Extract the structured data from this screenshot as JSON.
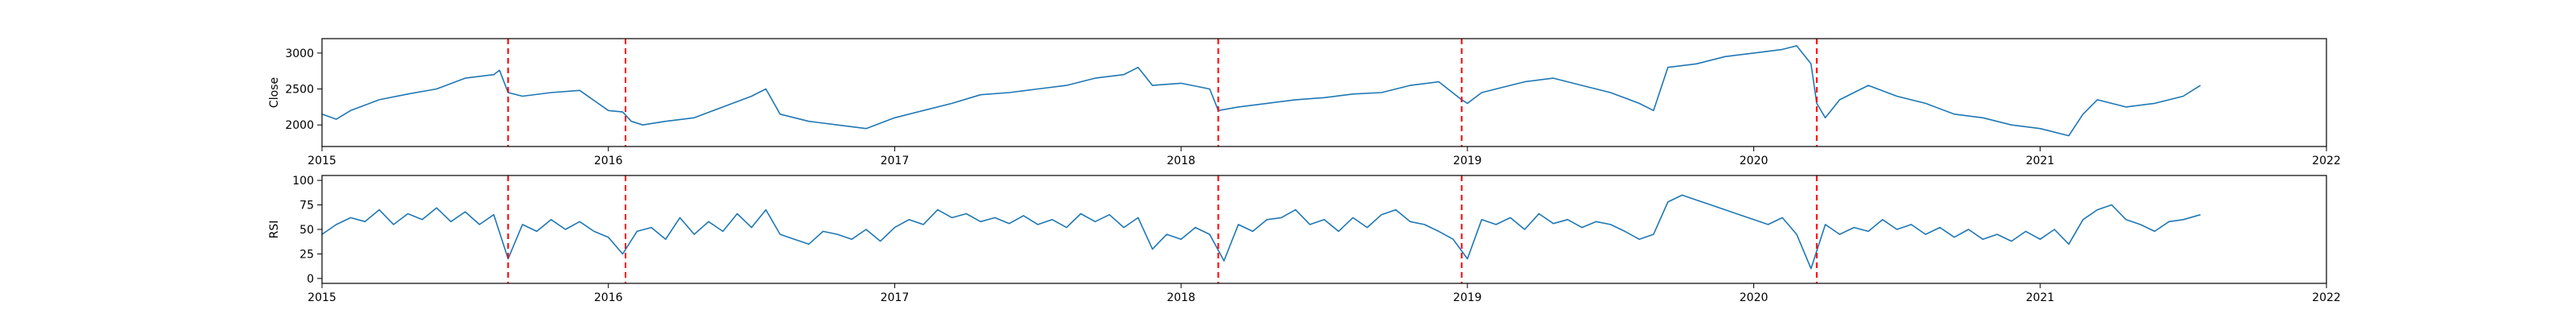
{
  "chart_data": [
    {
      "type": "line",
      "title": "",
      "xlabel": "",
      "ylabel": "Close",
      "xlim": [
        2015.0,
        2022.0
      ],
      "ylim": [
        1700,
        3200
      ],
      "grid": false,
      "x_ticks": [
        2015,
        2016,
        2017,
        2018,
        2019,
        2020,
        2021,
        2022
      ],
      "x_tick_labels": [
        "2015",
        "2016",
        "2017",
        "2018",
        "2019",
        "2020",
        "2021",
        "2022"
      ],
      "y_ticks": [
        2000,
        2500,
        3000
      ],
      "y_tick_labels": [
        "2000",
        "2500",
        "3000"
      ],
      "series": [
        {
          "color": "#1f77b4",
          "x": [
            2015.0,
            2015.05,
            2015.1,
            2015.2,
            2015.3,
            2015.4,
            2015.5,
            2015.6,
            2015.62,
            2015.65,
            2015.7,
            2015.8,
            2015.9,
            2016.0,
            2016.05,
            2016.08,
            2016.12,
            2016.2,
            2016.3,
            2016.4,
            2016.5,
            2016.55,
            2016.6,
            2016.7,
            2016.8,
            2016.9,
            2017.0,
            2017.1,
            2017.2,
            2017.3,
            2017.4,
            2017.5,
            2017.6,
            2017.7,
            2017.8,
            2017.85,
            2017.9,
            2018.0,
            2018.1,
            2018.13,
            2018.2,
            2018.3,
            2018.4,
            2018.5,
            2018.6,
            2018.7,
            2018.8,
            2018.9,
            2018.98,
            2019.0,
            2019.05,
            2019.1,
            2019.2,
            2019.3,
            2019.4,
            2019.5,
            2019.6,
            2019.65,
            2019.7,
            2019.8,
            2019.9,
            2020.0,
            2020.1,
            2020.15,
            2020.2,
            2020.22,
            2020.25,
            2020.3,
            2020.35,
            2020.4,
            2020.5,
            2020.6,
            2020.7,
            2020.8,
            2020.9,
            2021.0,
            2021.1,
            2021.15,
            2021.2,
            2021.3,
            2021.4,
            2021.5,
            2021.56
          ],
          "values": [
            2150,
            2080,
            2200,
            2350,
            2430,
            2500,
            2650,
            2700,
            2760,
            2450,
            2400,
            2450,
            2480,
            2200,
            2180,
            2050,
            2000,
            2050,
            2100,
            2250,
            2400,
            2500,
            2150,
            2050,
            2000,
            1950,
            2100,
            2200,
            2300,
            2420,
            2450,
            2500,
            2550,
            2650,
            2700,
            2800,
            2550,
            2580,
            2500,
            2200,
            2250,
            2300,
            2350,
            2380,
            2430,
            2450,
            2550,
            2600,
            2350,
            2300,
            2450,
            2500,
            2600,
            2650,
            2550,
            2450,
            2300,
            2200,
            2800,
            2850,
            2950,
            3000,
            3050,
            3100,
            2850,
            2300,
            2100,
            2350,
            2450,
            2550,
            2400,
            2300,
            2150,
            2100,
            2000,
            1950,
            1850,
            2150,
            2350,
            2250,
            2300,
            2400,
            2550
          ]
        }
      ],
      "vlines": {
        "color": "#ff0000",
        "style": "dashed",
        "x": [
          2015.65,
          2016.06,
          2018.13,
          2018.98,
          2020.22
        ]
      }
    },
    {
      "type": "line",
      "title": "",
      "xlabel": "",
      "ylabel": "RSI",
      "xlim": [
        2015.0,
        2022.0
      ],
      "ylim": [
        -5,
        105
      ],
      "grid": false,
      "x_ticks": [
        2015,
        2016,
        2017,
        2018,
        2019,
        2020,
        2021,
        2022
      ],
      "x_tick_labels": [
        "2015",
        "2016",
        "2017",
        "2018",
        "2019",
        "2020",
        "2021",
        "2022"
      ],
      "y_ticks": [
        0,
        25,
        50,
        75,
        100
      ],
      "y_tick_labels": [
        "0",
        "25",
        "50",
        "75",
        "100"
      ],
      "series": [
        {
          "color": "#1f77b4",
          "x": [
            2015.0,
            2015.05,
            2015.1,
            2015.15,
            2015.2,
            2015.25,
            2015.3,
            2015.35,
            2015.4,
            2015.45,
            2015.5,
            2015.55,
            2015.6,
            2015.65,
            2015.7,
            2015.75,
            2015.8,
            2015.85,
            2015.9,
            2015.95,
            2016.0,
            2016.05,
            2016.1,
            2016.15,
            2016.2,
            2016.25,
            2016.3,
            2016.35,
            2016.4,
            2016.45,
            2016.5,
            2016.55,
            2016.6,
            2016.65,
            2016.7,
            2016.75,
            2016.8,
            2016.85,
            2016.9,
            2016.95,
            2017.0,
            2017.05,
            2017.1,
            2017.15,
            2017.2,
            2017.25,
            2017.3,
            2017.35,
            2017.4,
            2017.45,
            2017.5,
            2017.55,
            2017.6,
            2017.65,
            2017.7,
            2017.75,
            2017.8,
            2017.85,
            2017.9,
            2017.95,
            2018.0,
            2018.05,
            2018.1,
            2018.15,
            2018.2,
            2018.25,
            2018.3,
            2018.35,
            2018.4,
            2018.45,
            2018.5,
            2018.55,
            2018.6,
            2018.65,
            2018.7,
            2018.75,
            2018.8,
            2018.85,
            2018.9,
            2018.95,
            2019.0,
            2019.05,
            2019.1,
            2019.15,
            2019.2,
            2019.25,
            2019.3,
            2019.35,
            2019.4,
            2019.45,
            2019.5,
            2019.55,
            2019.6,
            2019.65,
            2019.7,
            2019.75,
            2019.8,
            2019.85,
            2019.9,
            2019.95,
            2020.0,
            2020.05,
            2020.1,
            2020.15,
            2020.2,
            2020.25,
            2020.3,
            2020.35,
            2020.4,
            2020.45,
            2020.5,
            2020.55,
            2020.6,
            2020.65,
            2020.7,
            2020.75,
            2020.8,
            2020.85,
            2020.9,
            2020.95,
            2021.0,
            2021.05,
            2021.1,
            2021.15,
            2021.2,
            2021.25,
            2021.3,
            2021.35,
            2021.4,
            2021.45,
            2021.5,
            2021.56
          ],
          "values": [
            45,
            55,
            62,
            58,
            70,
            55,
            66,
            60,
            72,
            58,
            68,
            55,
            65,
            20,
            55,
            48,
            60,
            50,
            58,
            48,
            42,
            25,
            48,
            52,
            40,
            62,
            45,
            58,
            48,
            66,
            52,
            70,
            45,
            40,
            35,
            48,
            45,
            40,
            50,
            38,
            52,
            60,
            55,
            70,
            62,
            66,
            58,
            62,
            56,
            64,
            55,
            60,
            52,
            66,
            58,
            65,
            52,
            62,
            30,
            45,
            40,
            52,
            45,
            18,
            55,
            48,
            60,
            62,
            70,
            55,
            60,
            48,
            62,
            52,
            65,
            70,
            58,
            55,
            48,
            40,
            20,
            60,
            55,
            62,
            50,
            66,
            56,
            60,
            52,
            58,
            55,
            48,
            40,
            45,
            78,
            85,
            80,
            75,
            70,
            65,
            60,
            55,
            62,
            45,
            10,
            55,
            45,
            52,
            48,
            60,
            50,
            55,
            45,
            52,
            42,
            50,
            40,
            45,
            38,
            48,
            40,
            50,
            35,
            60,
            70,
            75,
            60,
            55,
            48,
            58,
            60,
            65
          ]
        }
      ],
      "vlines": {
        "color": "#ff0000",
        "style": "dashed",
        "x": [
          2015.65,
          2016.06,
          2018.13,
          2018.98,
          2020.22
        ]
      }
    }
  ]
}
